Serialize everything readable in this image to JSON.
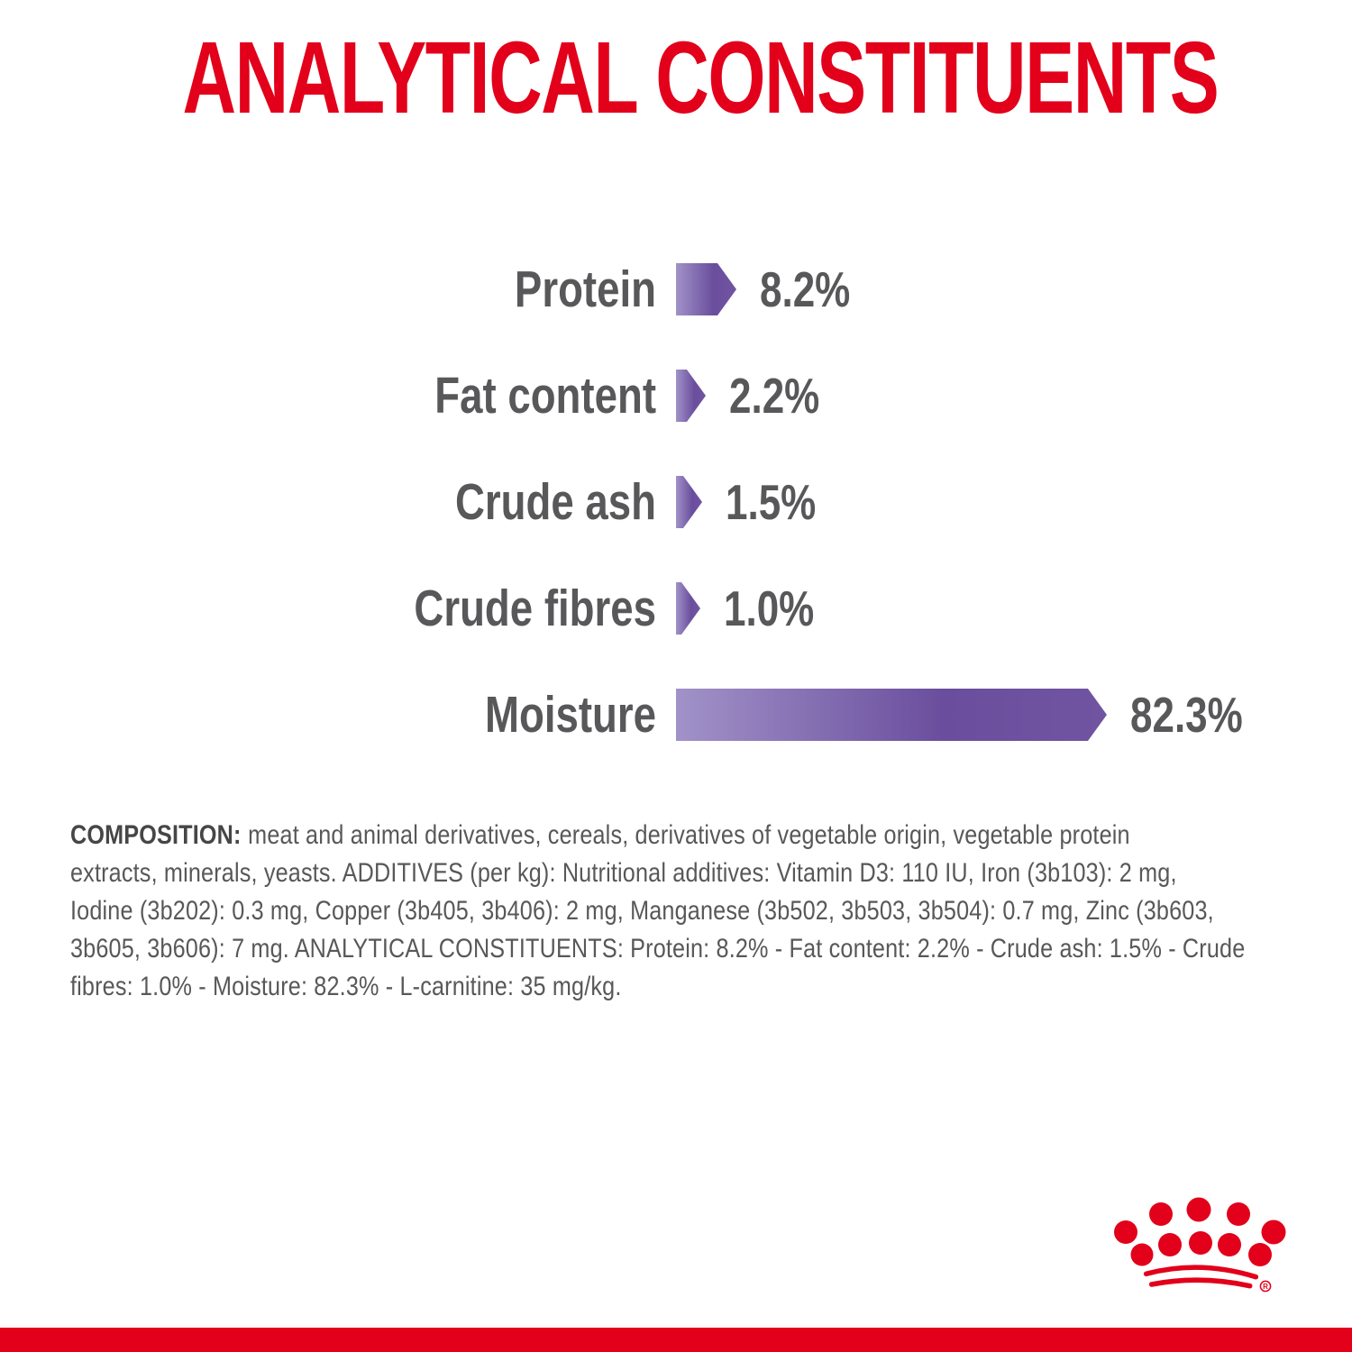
{
  "header": {
    "title": "ANALYTICAL CONSTITUENTS",
    "title_color": "#E2001A"
  },
  "chart_data": {
    "type": "bar",
    "orientation": "horizontal",
    "title": "ANALYTICAL CONSTITUENTS",
    "categories": [
      "Protein",
      "Fat content",
      "Crude ash",
      "Crude fibres",
      "Moisture"
    ],
    "values": [
      8.2,
      2.2,
      1.5,
      1.0,
      82.3
    ],
    "value_labels": [
      "8.2%",
      "2.2%",
      "1.5%",
      "1.0%",
      "82.3%"
    ],
    "unit": "%",
    "xlim": [
      0,
      100
    ],
    "grid": false,
    "legend": false,
    "bar_shape": "arrow-right",
    "bar_gradient": [
      "#A192C8",
      "#6A4E9D",
      "#7154A1"
    ],
    "text_color": "#58585A"
  },
  "composition": {
    "label": "COMPOSITION:",
    "lines": [
      "meat and animal derivatives, cereals, derivatives of vegetable origin, vegetable protein",
      "extracts, minerals, yeasts. ADDITIVES (per kg): Nutritional additives: Vitamin D3: 110 IU, Iron (3b103): 2 mg,",
      "Iodine (3b202): 0.3 mg, Copper (3b405, 3b406): 2 mg, Manganese (3b502, 3b503, 3b504): 0.7 mg, Zinc (3b603,",
      "3b605, 3b606): 7 mg. ANALYTICAL CONSTITUENTS: Protein: 8.2% - Fat content: 2.2% - Crude ash: 1.5% - Crude",
      "fibres: 1.0% - Moisture: 82.3% - L-carnitine: 35 mg/kg."
    ]
  },
  "logo": {
    "name": "royal-canin-crown",
    "color": "#E2001A",
    "registered_mark": "R"
  },
  "footer": {
    "bar_color": "#E2001A"
  }
}
